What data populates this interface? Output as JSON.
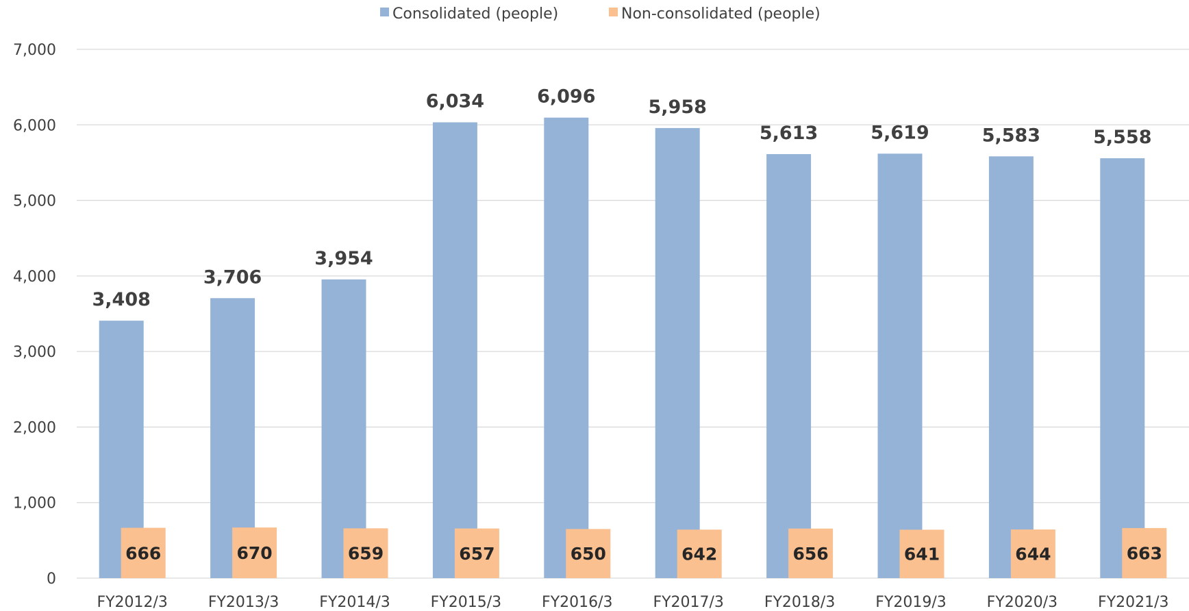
{
  "chart_data": {
    "type": "bar",
    "categories": [
      "FY2012/3",
      "FY2013/3",
      "FY2014/3",
      "FY2015/3",
      "FY2016/3",
      "FY2017/3",
      "FY2018/3",
      "FY2019/3",
      "FY2020/3",
      "FY2021/3"
    ],
    "series": [
      {
        "name": "Consolidated (people)",
        "color": "#95b3d7",
        "values": [
          3408,
          3706,
          3954,
          6034,
          6096,
          5958,
          5613,
          5619,
          5583,
          5558
        ],
        "labels": [
          "3,408",
          "3,706",
          "3,954",
          "6,034",
          "6,096",
          "5,958",
          "5,613",
          "5,619",
          "5,583",
          "5,558"
        ]
      },
      {
        "name": "Non-consolidated (people)",
        "color": "#fac090",
        "values": [
          666,
          670,
          659,
          657,
          650,
          642,
          656,
          641,
          644,
          663
        ],
        "labels": [
          "666",
          "670",
          "659",
          "657",
          "650",
          "642",
          "656",
          "641",
          "644",
          "663"
        ]
      }
    ],
    "y_ticks": [
      0,
      1000,
      2000,
      3000,
      4000,
      5000,
      6000,
      7000
    ],
    "y_tick_labels": [
      "0",
      "1,000",
      "2,000",
      "3,000",
      "4,000",
      "5,000",
      "6,000",
      "7,000"
    ],
    "ylim": [
      0,
      7000
    ],
    "grid": true,
    "legend": "top-center",
    "title": "",
    "xlabel": "",
    "ylabel": ""
  }
}
